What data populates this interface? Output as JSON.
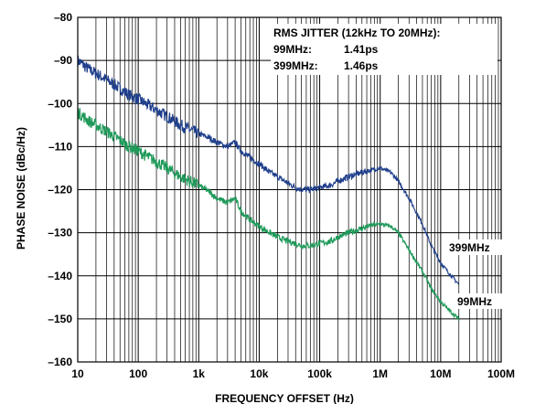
{
  "chart_data": {
    "type": "line",
    "title": "",
    "xlabel": "FREQUENCY OFFSET (Hz)",
    "ylabel": "PHASE NOISE (dBc/Hz)",
    "xscale": "log",
    "xlim": [
      10,
      100000000
    ],
    "ylim": [
      -160,
      -80
    ],
    "grid": true,
    "x_ticks": [
      10,
      100,
      1000,
      10000,
      100000,
      1000000,
      10000000,
      100000000
    ],
    "x_tick_labels": [
      "10",
      "100",
      "1k",
      "10k",
      "100k",
      "1M",
      "10M",
      "100M"
    ],
    "y_ticks": [
      -80,
      -90,
      -100,
      -110,
      -120,
      -130,
      -140,
      -150,
      -160
    ],
    "y_tick_labels": [
      "–80",
      "–90",
      "–100",
      "–110",
      "–120",
      "–130",
      "–140",
      "–150",
      "–160"
    ],
    "annotation": {
      "title": "RMS JITTER (12kHz TO 20MHz):",
      "rows": [
        {
          "label": "99MHz:",
          "value": "1.41ps"
        },
        {
          "label": "399MHz:",
          "value": "1.46ps"
        }
      ]
    },
    "series": [
      {
        "name": "399MHz",
        "color": "#1f3f8c",
        "x": [
          10,
          15,
          20,
          30,
          50,
          70,
          100,
          150,
          200,
          300,
          500,
          700,
          1000,
          1500,
          2000,
          3000,
          4000,
          5000,
          7000,
          10000,
          15000,
          20000,
          30000,
          40000,
          50000,
          70000,
          100000,
          150000,
          200000,
          300000,
          500000,
          700000,
          1000000,
          1500000,
          2000000,
          3000000,
          5000000,
          7000000,
          10000000,
          15000000,
          20000000
        ],
        "y": [
          -90,
          -92,
          -93,
          -94.5,
          -96.5,
          -98,
          -99,
          -100.5,
          -101.5,
          -103,
          -105,
          -106,
          -107,
          -108,
          -109,
          -110,
          -109,
          -111,
          -112.5,
          -114,
          -116,
          -117,
          -118.5,
          -119.5,
          -120,
          -120,
          -119.5,
          -119,
          -118,
          -117,
          -116,
          -115.5,
          -115,
          -116,
          -118,
          -122,
          -128,
          -133,
          -137,
          -140,
          -142
        ]
      },
      {
        "name": "99MHz",
        "color": "#1f9a5a",
        "x": [
          10,
          15,
          20,
          30,
          50,
          70,
          100,
          150,
          200,
          300,
          500,
          700,
          1000,
          1500,
          2000,
          3000,
          4000,
          5000,
          7000,
          10000,
          15000,
          20000,
          30000,
          40000,
          50000,
          70000,
          100000,
          150000,
          200000,
          300000,
          500000,
          700000,
          1000000,
          1500000,
          2000000,
          3000000,
          5000000,
          7000000,
          10000000,
          15000000,
          20000000
        ],
        "y": [
          -102,
          -104,
          -105,
          -106.5,
          -108.5,
          -110,
          -111,
          -112.5,
          -113.5,
          -115,
          -117,
          -118,
          -119,
          -120.5,
          -122,
          -123,
          -122,
          -125,
          -127,
          -128.5,
          -130,
          -131,
          -132,
          -132.5,
          -133,
          -133,
          -132.5,
          -132,
          -131,
          -130,
          -129,
          -128.3,
          -128,
          -128.5,
          -130,
          -134,
          -139,
          -143,
          -146,
          -148.5,
          -150
        ]
      }
    ]
  }
}
